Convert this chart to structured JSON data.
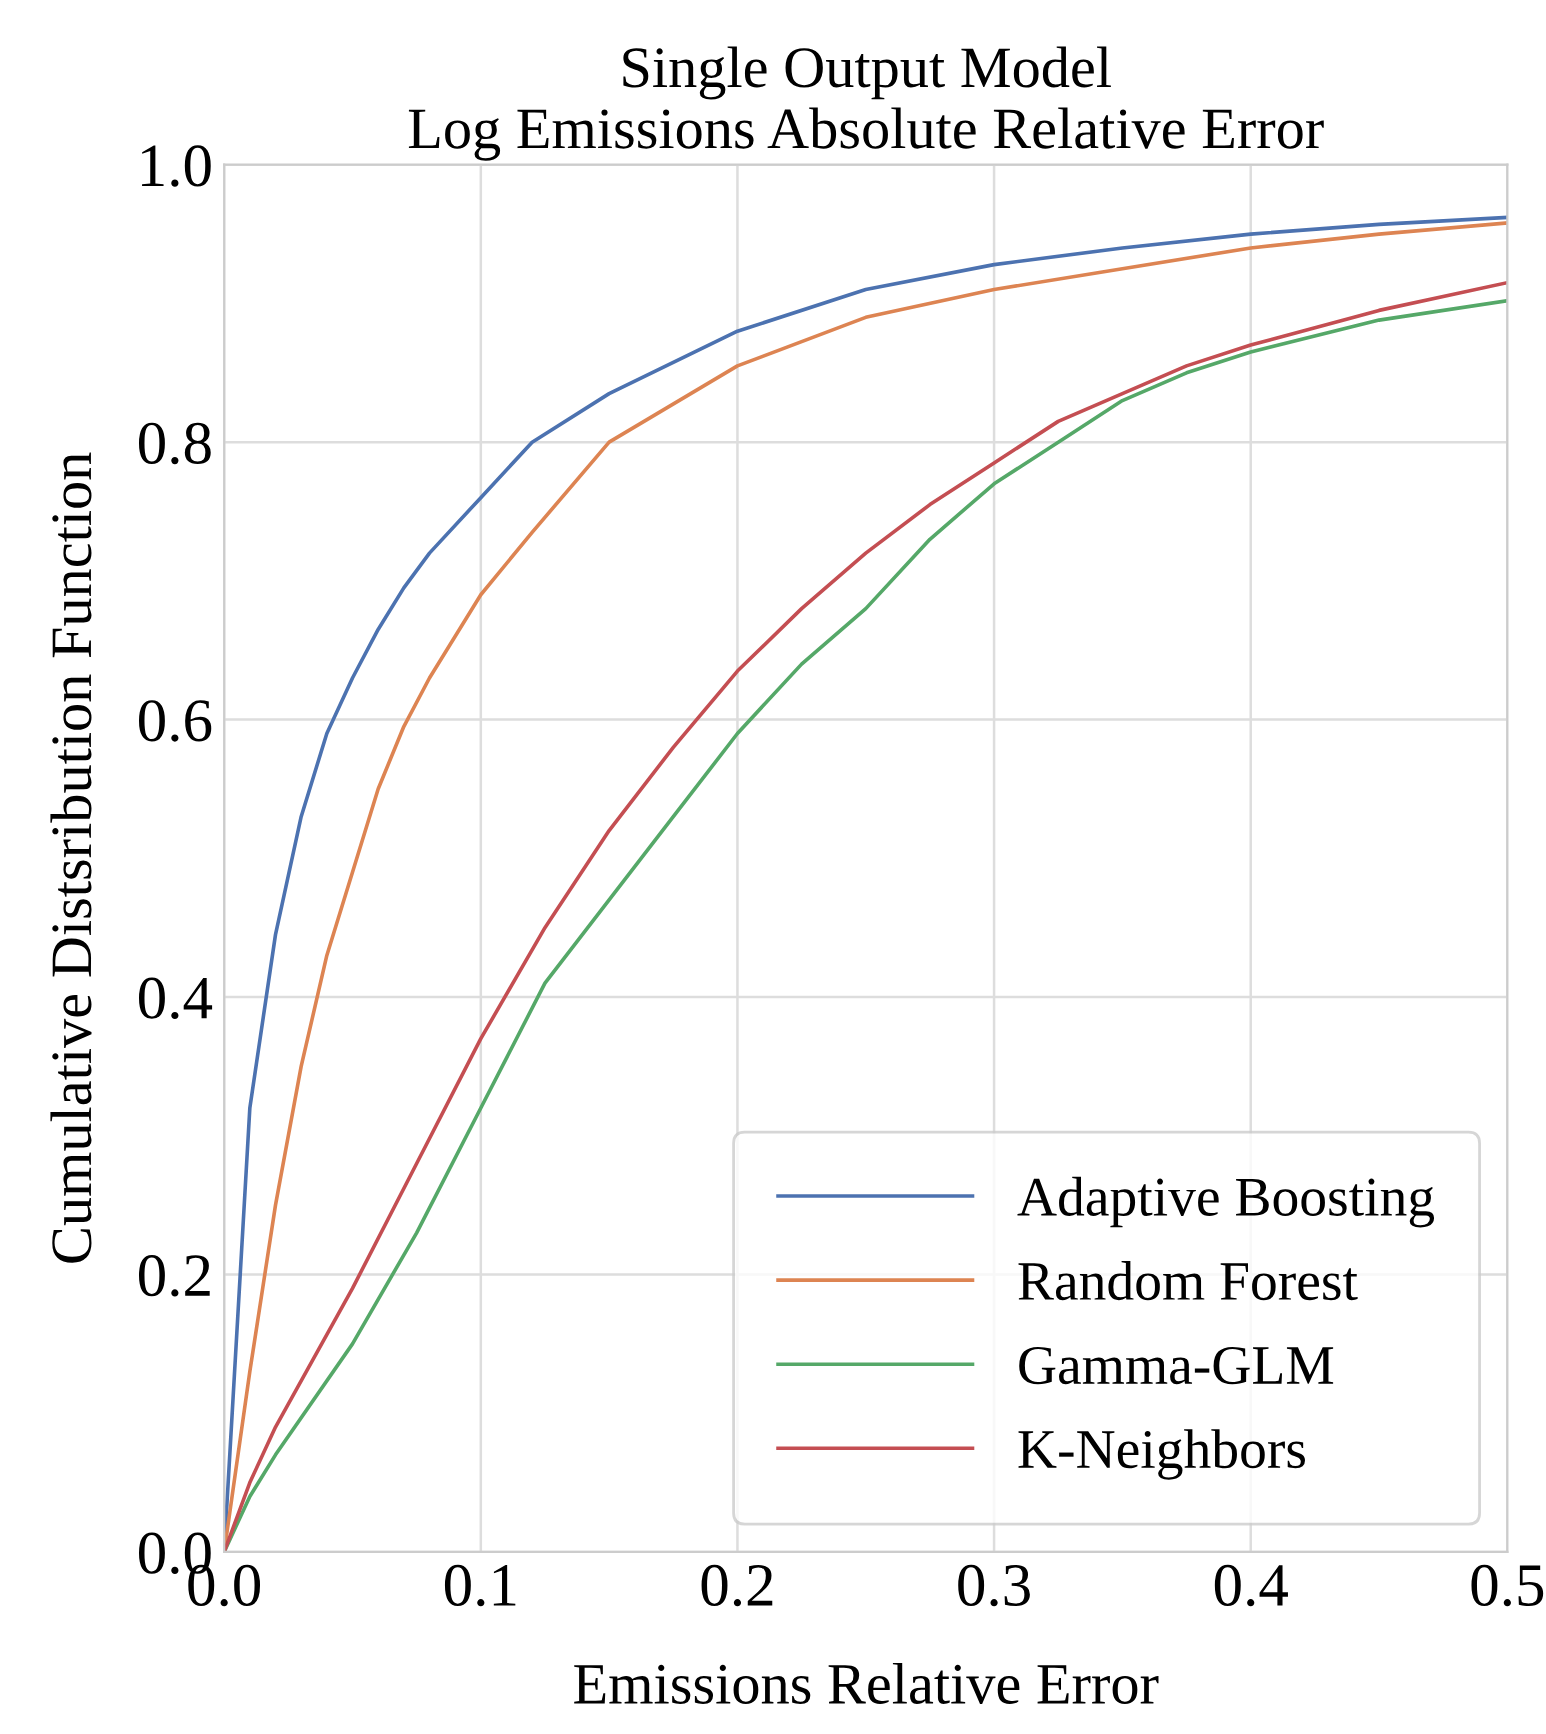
{
  "chart_data": {
    "type": "line",
    "title": "Single Output Model\nLog Emissions Absolute Relative Error",
    "xlabel": "Emissions Relative Error",
    "ylabel": "Cumulative Distsribution Function",
    "xlim": [
      0.0,
      0.5
    ],
    "ylim": [
      0.0,
      1.0
    ],
    "xticks": [
      {
        "value": 0,
        "label": "0.0"
      },
      0.1,
      0.2,
      0.3,
      0.4,
      0.5
    ],
    "yticks": [
      {
        "value": 0,
        "label": "0.0"
      },
      0.2,
      0.4,
      0.6,
      0.8,
      {
        "value": 1,
        "label": "1.0"
      }
    ],
    "grid": true,
    "legend": "bottom right",
    "marker": "none",
    "line_style": "solid",
    "series": [
      {
        "name": "Adaptive Boosting",
        "color": "#4c72b0",
        "x": [
          0,
          0.01,
          0.02,
          0.03,
          0.04,
          0.05,
          0.06,
          0.07,
          0.08,
          0.1,
          0.12,
          0.15,
          0.2,
          0.25,
          0.3,
          0.35,
          0.4,
          0.45,
          0.5
        ],
        "values": [
          0,
          0.32,
          0.445,
          0.53,
          0.59,
          0.63,
          0.665,
          0.695,
          0.72,
          0.76,
          0.8,
          0.835,
          0.88,
          0.91,
          0.928,
          0.94,
          0.95,
          0.957,
          0.962
        ]
      },
      {
        "name": "Random Forest",
        "color": "#dd8452",
        "x": [
          0,
          0.01,
          0.02,
          0.03,
          0.04,
          0.05,
          0.06,
          0.07,
          0.08,
          0.1,
          0.12,
          0.15,
          0.2,
          0.25,
          0.3,
          0.35,
          0.4,
          0.45,
          0.5
        ],
        "values": [
          0,
          0.13,
          0.25,
          0.35,
          0.43,
          0.49,
          0.55,
          0.595,
          0.63,
          0.69,
          0.735,
          0.8,
          0.855,
          0.89,
          0.91,
          0.925,
          0.94,
          0.95,
          0.958
        ]
      },
      {
        "name": "Gamma-GLM",
        "color": "#55a868",
        "x": [
          0,
          0.01,
          0.02,
          0.05,
          0.075,
          0.1,
          0.125,
          0.15,
          0.175,
          0.2,
          0.225,
          0.25,
          0.275,
          0.3,
          0.325,
          0.35,
          0.375,
          0.4,
          0.45,
          0.5
        ],
        "values": [
          0,
          0.04,
          0.07,
          0.15,
          0.23,
          0.32,
          0.41,
          0.47,
          0.53,
          0.59,
          0.64,
          0.68,
          0.73,
          0.77,
          0.8,
          0.83,
          0.85,
          0.865,
          0.888,
          0.902
        ]
      },
      {
        "name": "K-Neighbors",
        "color": "#c44e52",
        "x": [
          0,
          0.01,
          0.02,
          0.05,
          0.075,
          0.1,
          0.125,
          0.15,
          0.175,
          0.2,
          0.225,
          0.25,
          0.275,
          0.3,
          0.325,
          0.35,
          0.375,
          0.4,
          0.45,
          0.5
        ],
        "values": [
          0,
          0.05,
          0.09,
          0.19,
          0.28,
          0.37,
          0.45,
          0.52,
          0.58,
          0.635,
          0.68,
          0.72,
          0.755,
          0.785,
          0.815,
          0.835,
          0.855,
          0.87,
          0.895,
          0.915
        ]
      }
    ]
  }
}
